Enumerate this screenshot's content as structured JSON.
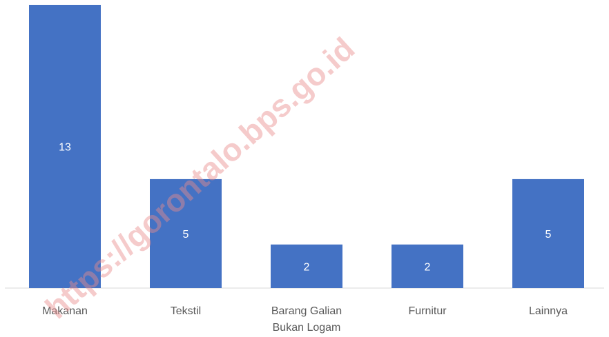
{
  "chart_data": {
    "type": "bar",
    "categories": [
      "Makanan",
      "Tekstil",
      "Barang Galian Bukan Logam",
      "Furnitur",
      "Lainnya"
    ],
    "values": [
      13,
      5,
      2,
      2,
      5
    ],
    "color": "#4472c4",
    "watermark": "https://gorontalo.bps.go.id"
  }
}
